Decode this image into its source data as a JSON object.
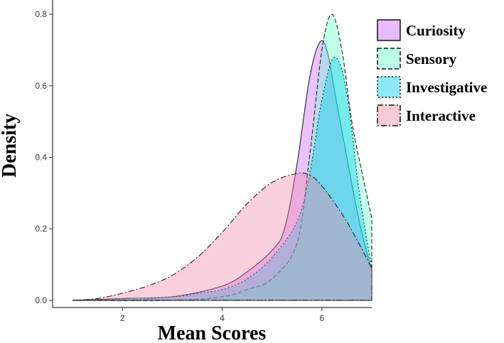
{
  "chart_data": {
    "type": "area",
    "chart_kind": "density",
    "xlabel": "Mean Scores",
    "ylabel": "Density",
    "xlim": [
      0.6,
      7.0
    ],
    "ylim": [
      -0.02,
      0.84
    ],
    "x_ticks": [
      2,
      4,
      6
    ],
    "y_ticks": [
      0.0,
      0.2,
      0.4,
      0.6,
      0.8
    ],
    "y_tick_labels": [
      "0.0",
      "0.2",
      "0.4",
      "0.6",
      "0.8"
    ],
    "grid": false,
    "legend_position": "top-right",
    "series": [
      {
        "name": "Curiosity",
        "fill": "#cc66ff",
        "line_style": "solid",
        "points": [
          [
            1.0,
            0.0
          ],
          [
            2.0,
            0.005
          ],
          [
            3.0,
            0.01
          ],
          [
            4.0,
            0.04
          ],
          [
            4.5,
            0.08
          ],
          [
            5.0,
            0.14
          ],
          [
            5.25,
            0.2
          ],
          [
            5.5,
            0.38
          ],
          [
            5.75,
            0.62
          ],
          [
            5.95,
            0.72
          ],
          [
            6.1,
            0.7
          ],
          [
            6.3,
            0.55
          ],
          [
            6.5,
            0.4
          ],
          [
            6.75,
            0.22
          ],
          [
            7.0,
            0.08
          ]
        ]
      },
      {
        "name": "Sensory",
        "fill": "#66ffcc",
        "line_style": "dashed",
        "points": [
          [
            1.0,
            0.0
          ],
          [
            3.0,
            0.0
          ],
          [
            4.0,
            0.01
          ],
          [
            4.5,
            0.03
          ],
          [
            5.0,
            0.06
          ],
          [
            5.5,
            0.16
          ],
          [
            5.75,
            0.4
          ],
          [
            6.0,
            0.7
          ],
          [
            6.2,
            0.8
          ],
          [
            6.4,
            0.7
          ],
          [
            6.6,
            0.5
          ],
          [
            6.8,
            0.36
          ],
          [
            7.0,
            0.23
          ]
        ]
      },
      {
        "name": "Investigative",
        "fill": "#00ccee",
        "line_style": "dotted",
        "points": [
          [
            1.0,
            0.0
          ],
          [
            3.0,
            0.01
          ],
          [
            3.5,
            0.02
          ],
          [
            4.0,
            0.03
          ],
          [
            4.5,
            0.06
          ],
          [
            5.0,
            0.12
          ],
          [
            5.5,
            0.22
          ],
          [
            5.75,
            0.35
          ],
          [
            6.0,
            0.56
          ],
          [
            6.25,
            0.68
          ],
          [
            6.5,
            0.58
          ],
          [
            6.75,
            0.3
          ],
          [
            7.0,
            0.09
          ]
        ]
      },
      {
        "name": "Interactive",
        "fill": "#ee88aa",
        "line_style": "dashdot",
        "points": [
          [
            1.0,
            0.0
          ],
          [
            1.5,
            0.005
          ],
          [
            2.0,
            0.02
          ],
          [
            2.5,
            0.04
          ],
          [
            3.0,
            0.07
          ],
          [
            3.5,
            0.12
          ],
          [
            4.0,
            0.19
          ],
          [
            4.5,
            0.27
          ],
          [
            5.0,
            0.33
          ],
          [
            5.5,
            0.355
          ],
          [
            5.75,
            0.35
          ],
          [
            6.0,
            0.32
          ],
          [
            6.5,
            0.22
          ],
          [
            7.0,
            0.09
          ]
        ]
      }
    ]
  }
}
